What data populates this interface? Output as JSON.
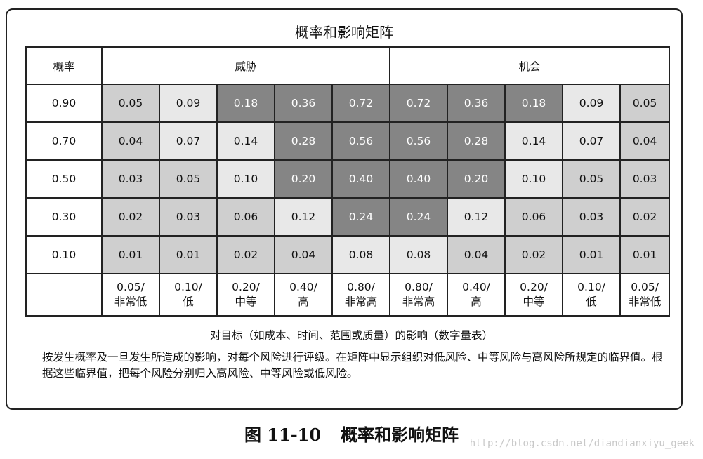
{
  "title": "概率和影响矩阵",
  "headers": {
    "probability": "概率",
    "threats": "威胁",
    "opportunities": "机会"
  },
  "rows": [
    {
      "p": "0.90",
      "cells": [
        {
          "v": "0.05",
          "shade": "c1"
        },
        {
          "v": "0.09",
          "shade": "c2"
        },
        {
          "v": "0.18",
          "shade": "c3"
        },
        {
          "v": "0.36",
          "shade": "c3"
        },
        {
          "v": "0.72",
          "shade": "c3"
        },
        {
          "v": "0.72",
          "shade": "c3"
        },
        {
          "v": "0.36",
          "shade": "c3"
        },
        {
          "v": "0.18",
          "shade": "c3"
        },
        {
          "v": "0.09",
          "shade": "c2"
        },
        {
          "v": "0.05",
          "shade": "c1"
        }
      ]
    },
    {
      "p": "0.70",
      "cells": [
        {
          "v": "0.04",
          "shade": "c1"
        },
        {
          "v": "0.07",
          "shade": "c2"
        },
        {
          "v": "0.14",
          "shade": "c2"
        },
        {
          "v": "0.28",
          "shade": "c3"
        },
        {
          "v": "0.56",
          "shade": "c3"
        },
        {
          "v": "0.56",
          "shade": "c3"
        },
        {
          "v": "0.28",
          "shade": "c3"
        },
        {
          "v": "0.14",
          "shade": "c2"
        },
        {
          "v": "0.07",
          "shade": "c2"
        },
        {
          "v": "0.04",
          "shade": "c1"
        }
      ]
    },
    {
      "p": "0.50",
      "cells": [
        {
          "v": "0.03",
          "shade": "c1"
        },
        {
          "v": "0.05",
          "shade": "c1"
        },
        {
          "v": "0.10",
          "shade": "c2"
        },
        {
          "v": "0.20",
          "shade": "c3"
        },
        {
          "v": "0.40",
          "shade": "c3"
        },
        {
          "v": "0.40",
          "shade": "c3"
        },
        {
          "v": "0.20",
          "shade": "c3"
        },
        {
          "v": "0.10",
          "shade": "c2"
        },
        {
          "v": "0.05",
          "shade": "c1"
        },
        {
          "v": "0.03",
          "shade": "c1"
        }
      ]
    },
    {
      "p": "0.30",
      "cells": [
        {
          "v": "0.02",
          "shade": "c1"
        },
        {
          "v": "0.03",
          "shade": "c1"
        },
        {
          "v": "0.06",
          "shade": "c1"
        },
        {
          "v": "0.12",
          "shade": "c2"
        },
        {
          "v": "0.24",
          "shade": "c3"
        },
        {
          "v": "0.24",
          "shade": "c3"
        },
        {
          "v": "0.12",
          "shade": "c2"
        },
        {
          "v": "0.06",
          "shade": "c1"
        },
        {
          "v": "0.03",
          "shade": "c1"
        },
        {
          "v": "0.02",
          "shade": "c1"
        }
      ]
    },
    {
      "p": "0.10",
      "cells": [
        {
          "v": "0.01",
          "shade": "c1"
        },
        {
          "v": "0.01",
          "shade": "c1"
        },
        {
          "v": "0.02",
          "shade": "c1"
        },
        {
          "v": "0.04",
          "shade": "c1"
        },
        {
          "v": "0.08",
          "shade": "c2"
        },
        {
          "v": "0.08",
          "shade": "c2"
        },
        {
          "v": "0.04",
          "shade": "c1"
        },
        {
          "v": "0.02",
          "shade": "c1"
        },
        {
          "v": "0.01",
          "shade": "c1"
        },
        {
          "v": "0.01",
          "shade": "c1"
        }
      ]
    }
  ],
  "impact_labels": [
    {
      "value": "0.05/",
      "label": "非常低"
    },
    {
      "value": "0.10/",
      "label": "低"
    },
    {
      "value": "0.20/",
      "label": "中等"
    },
    {
      "value": "0.40/",
      "label": "高"
    },
    {
      "value": "0.80/",
      "label": "非常高"
    },
    {
      "value": "0.80/",
      "label": "非常高"
    },
    {
      "value": "0.40/",
      "label": "高"
    },
    {
      "value": "0.20/",
      "label": "中等"
    },
    {
      "value": "0.10/",
      "label": "低"
    },
    {
      "value": "0.05/",
      "label": "非常低"
    }
  ],
  "caption": "对目标（如成本、时间、范围或质量）的影响（数字量表）",
  "description": "按发生概率及一旦发生所造成的影响，对每个风险进行评级。在矩阵中显示组织对低风险、中等风险与高风险所规定的临界值。根据这些临界值，把每个风险分别归入高风险、中等风险或低风险。",
  "figure": {
    "number": "图 11-10",
    "title": "概率和影响矩阵"
  },
  "watermark": "http://blog.csdn.net/diandianxiyu_geek"
}
